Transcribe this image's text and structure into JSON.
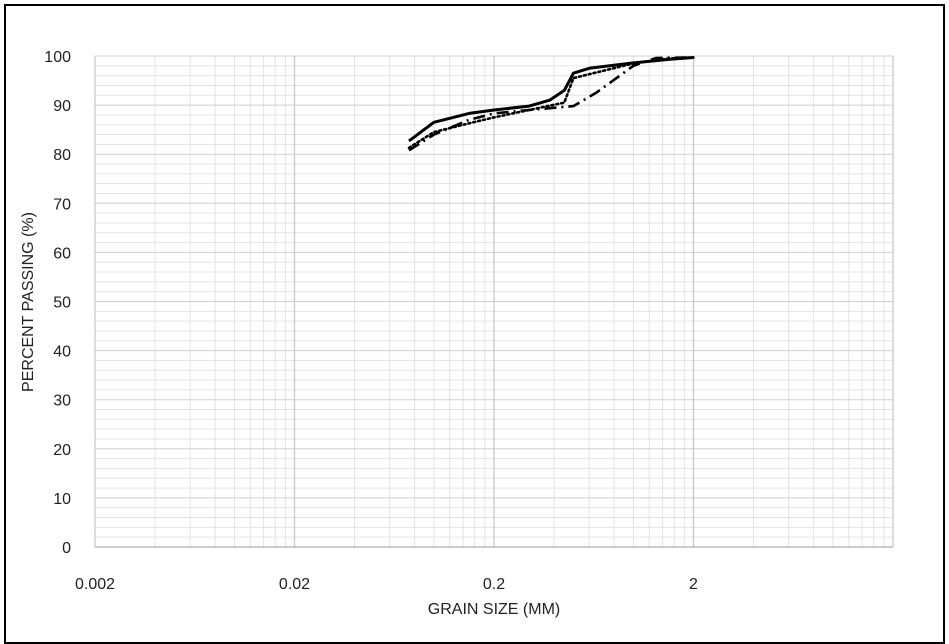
{
  "chart_data": {
    "type": "line",
    "title": "",
    "xlabel": "GRAIN SIZE (MM)",
    "ylabel": "PERCENT PASSING (%)",
    "x_scale": "log",
    "xlim": [
      0.002,
      20
    ],
    "ylim": [
      0,
      100
    ],
    "x_ticks": [
      "0.002",
      "0.02",
      "0.2",
      "2"
    ],
    "y_ticks": [
      "0",
      "10",
      "20",
      "30",
      "40",
      "50",
      "60",
      "70",
      "80",
      "90",
      "100"
    ],
    "grid": true,
    "legend": "none",
    "series": [
      {
        "style": "solid",
        "x": [
          0.075,
          0.1,
          0.15,
          0.2,
          0.3,
          0.38,
          0.45,
          0.5,
          0.6,
          1.0,
          1.5,
          2.0
        ],
        "y": [
          82.7,
          86.5,
          88.3,
          89.0,
          89.8,
          91.0,
          93.0,
          96.5,
          97.5,
          98.6,
          99.3,
          99.7
        ]
      },
      {
        "style": "dotted",
        "x": [
          0.075,
          0.1,
          0.15,
          0.2,
          0.3,
          0.45,
          0.5,
          1.0,
          1.5,
          2.0
        ],
        "y": [
          81.3,
          84.5,
          86.3,
          87.5,
          89.0,
          90.5,
          95.5,
          98.5,
          99.5,
          99.7
        ]
      },
      {
        "style": "dash-dot",
        "x": [
          0.075,
          0.1,
          0.15,
          0.2,
          0.3,
          0.5,
          0.65,
          1.0,
          1.3,
          2.0
        ],
        "y": [
          80.8,
          84.0,
          87.0,
          88.3,
          89.0,
          89.8,
          92.5,
          98.0,
          99.6,
          99.7
        ]
      }
    ]
  }
}
